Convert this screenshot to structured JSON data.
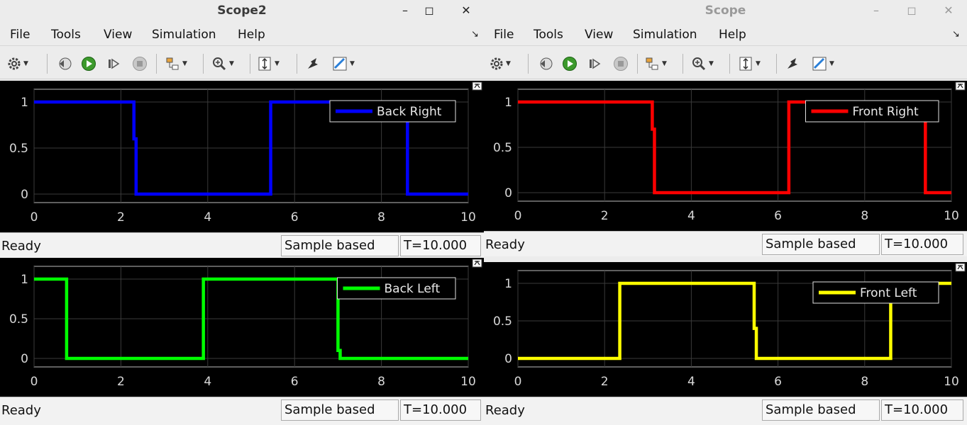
{
  "windows": [
    {
      "title": "Scope2",
      "active": true,
      "menus": [
        "File",
        "Tools",
        "View",
        "Simulation",
        "Help"
      ],
      "scopes": [
        {
          "legend": "Back Right",
          "color": "#0000ff",
          "x": [
            0,
            2.3,
            2.3,
            2.35,
            2.35,
            5.45,
            5.45,
            8.6,
            8.6,
            10
          ],
          "y": [
            1,
            1,
            0.6,
            0.6,
            0,
            0,
            1,
            1,
            0,
            0
          ],
          "xlim": [
            0,
            10
          ],
          "yticks": [
            "1",
            "0.5",
            "0"
          ],
          "xticks": [
            "0",
            "2",
            "4",
            "6",
            "8",
            "10"
          ],
          "status": "Ready",
          "mode": "Sample based",
          "time": "T=10.000"
        },
        {
          "legend": "Back Left",
          "color": "#00ff00",
          "x": [
            0,
            0.75,
            0.75,
            3.9,
            3.9,
            7.0,
            7.0,
            7.05,
            7.05,
            10
          ],
          "y": [
            1,
            1,
            0,
            0,
            1,
            1,
            0.1,
            0.1,
            0,
            0
          ],
          "xlim": [
            0,
            10
          ],
          "yticks": [
            "1",
            "0.5",
            "0"
          ],
          "xticks": [
            "0",
            "2",
            "4",
            "6",
            "8",
            "10"
          ],
          "status": "Ready",
          "mode": "Sample based",
          "time": "T=10.000"
        }
      ]
    },
    {
      "title": "Scope",
      "active": false,
      "menus": [
        "File",
        "Tools",
        "View",
        "Simulation",
        "Help"
      ],
      "scopes": [
        {
          "legend": "Front Right",
          "color": "#ff0000",
          "x": [
            0,
            3.1,
            3.1,
            3.15,
            3.15,
            6.25,
            6.25,
            9.4,
            9.4,
            10
          ],
          "y": [
            1,
            1,
            0.7,
            0.7,
            0,
            0,
            1,
            1,
            0,
            0
          ],
          "xlim": [
            0,
            10
          ],
          "yticks": [
            "1",
            "0.5",
            "0"
          ],
          "xticks": [
            "0",
            "2",
            "4",
            "6",
            "8",
            "10"
          ],
          "status": "Ready",
          "mode": "Sample based",
          "time": "T=10.000"
        },
        {
          "legend": "Front Left",
          "color": "#ffff00",
          "x": [
            0,
            2.35,
            2.35,
            5.45,
            5.45,
            5.5,
            5.5,
            8.6,
            8.6,
            9.75,
            9.75,
            10
          ],
          "y": [
            0,
            0,
            1,
            1,
            0.4,
            0.4,
            0,
            0,
            1,
            1,
            1,
            1
          ],
          "xlim": [
            0,
            10
          ],
          "yticks": [
            "1",
            "0.5",
            "0"
          ],
          "xticks": [
            "0",
            "2",
            "4",
            "6",
            "8",
            "10"
          ],
          "status": "Ready",
          "mode": "Sample based",
          "time": "T=10.000"
        }
      ]
    }
  ],
  "icons": [
    "settings-icon",
    "step-back-icon",
    "run-icon",
    "step-forward-icon",
    "stop-icon",
    "signal-select-icon",
    "zoom-icon",
    "autoscale-icon",
    "highlight-block-icon",
    "measurements-icon",
    "undock-icon"
  ]
}
